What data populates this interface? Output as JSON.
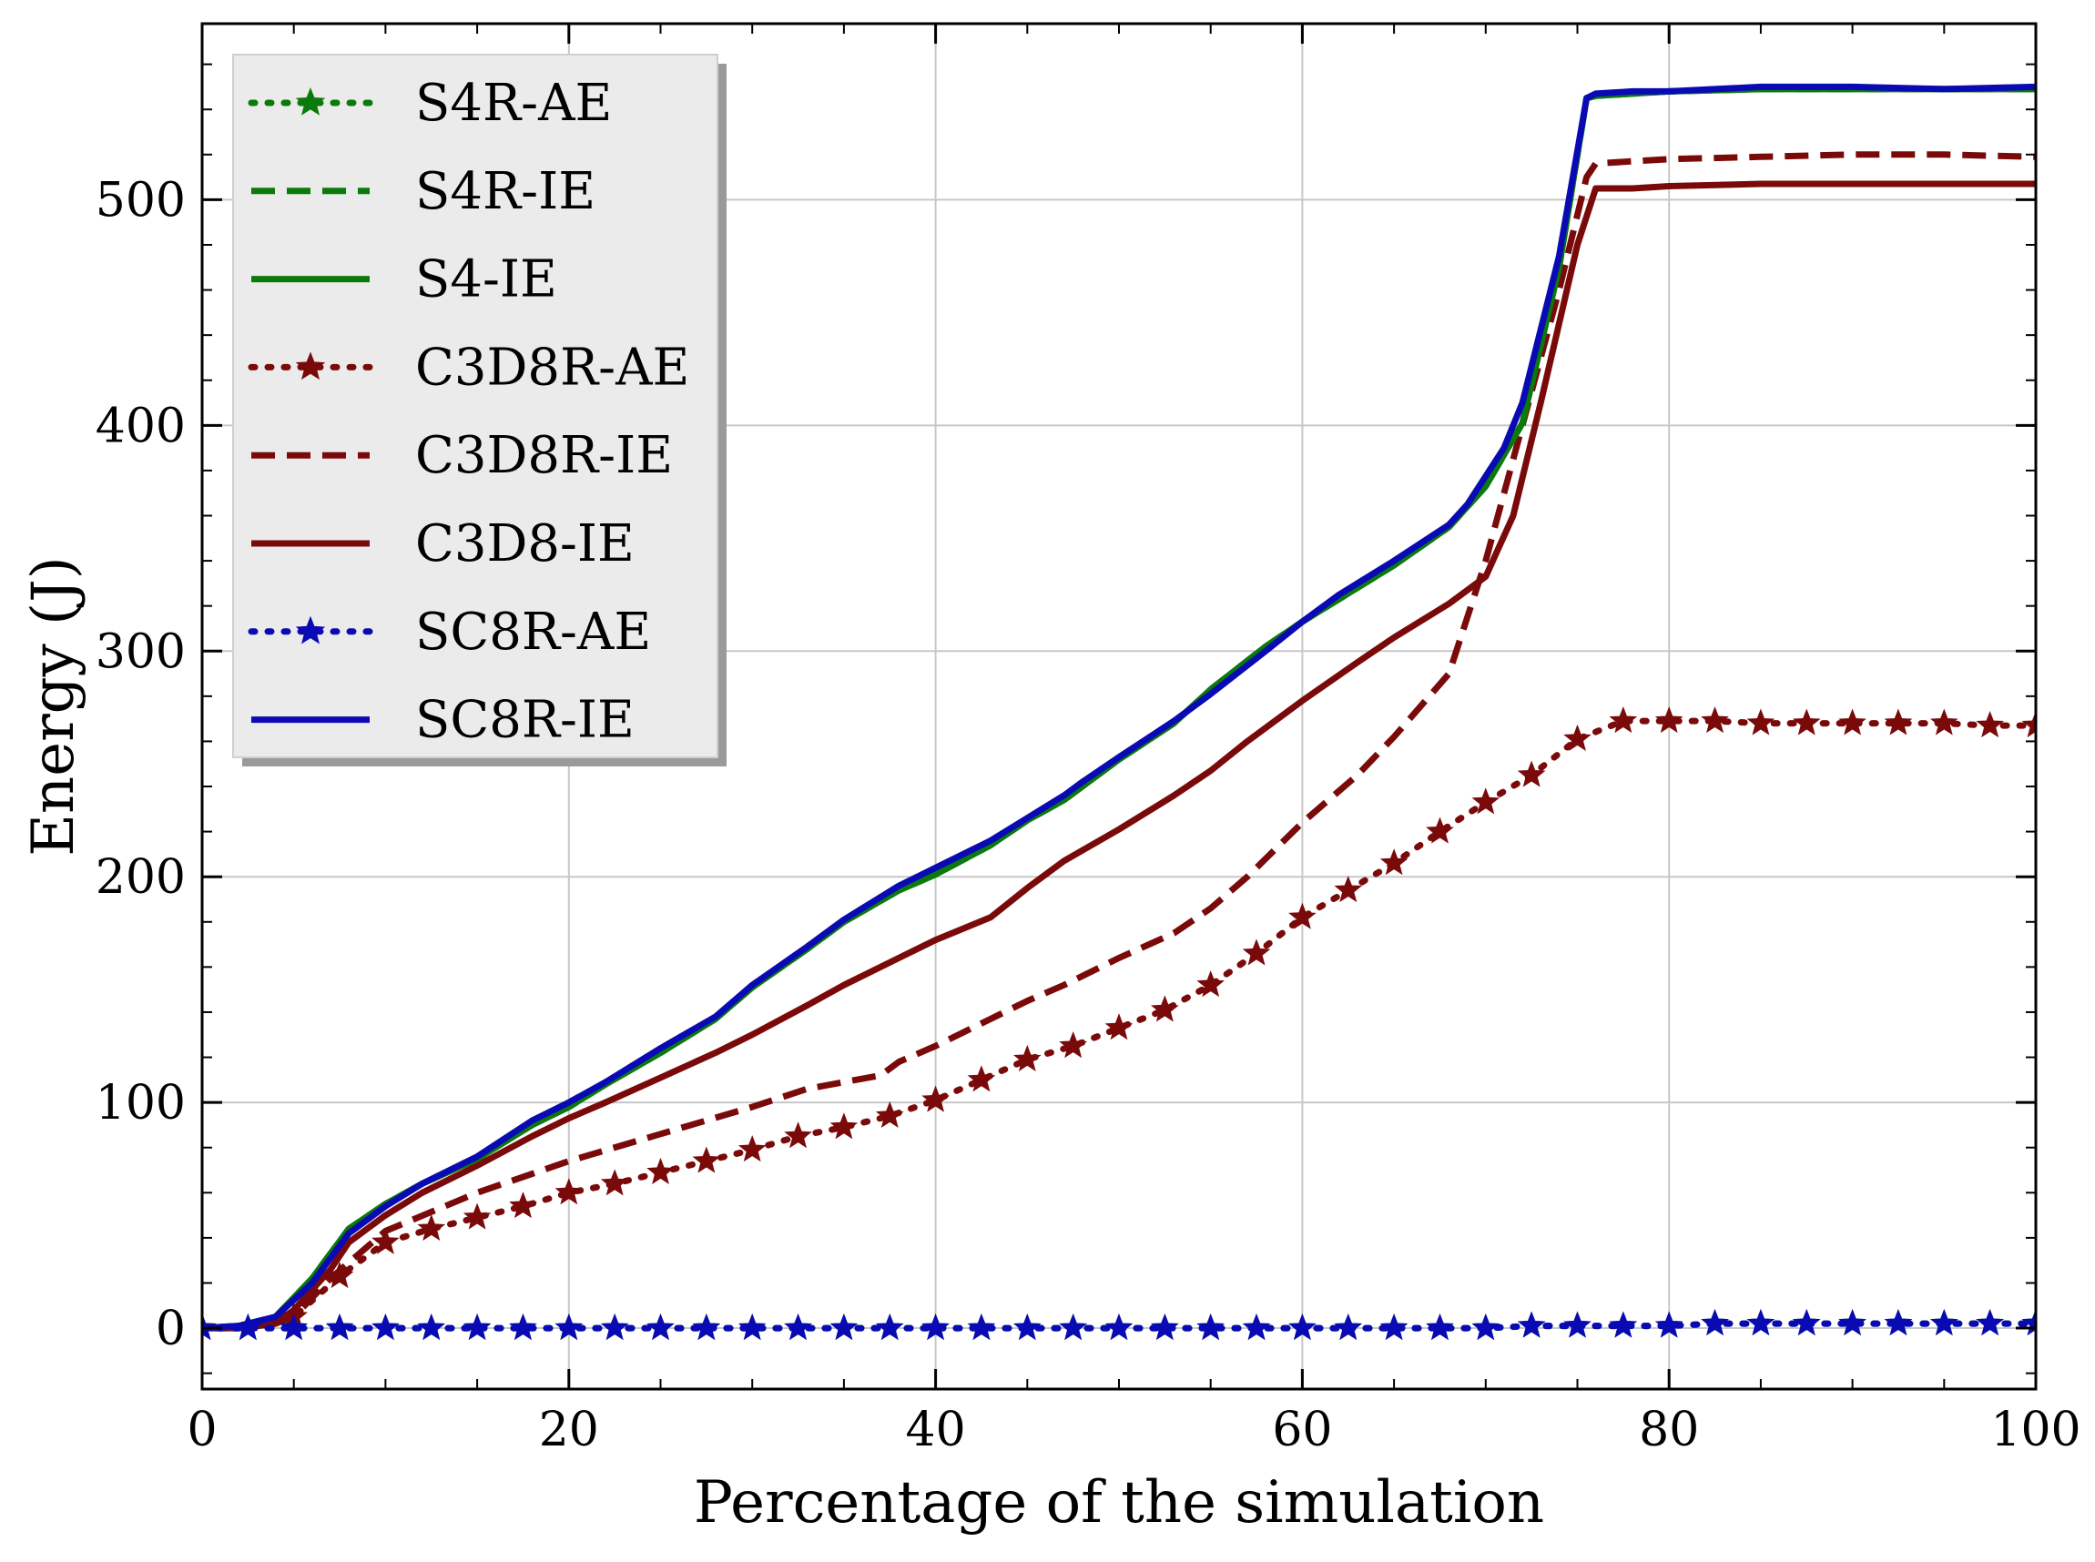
{
  "chart_data": {
    "type": "line",
    "title": "",
    "xlabel": "Percentage of the simulation",
    "ylabel": "Energy (J)",
    "xlim": [
      0,
      100
    ],
    "ylim": [
      -27,
      578
    ],
    "xticks": [
      "0",
      "20",
      "40",
      "60",
      "80",
      "100"
    ],
    "yticks": [
      "0",
      "100",
      "200",
      "300",
      "400",
      "500"
    ],
    "xtick_values": [
      0,
      20,
      40,
      60,
      80,
      100
    ],
    "ytick_values": [
      0,
      100,
      200,
      300,
      400,
      500
    ],
    "grid": true,
    "legend_location": "upper-left",
    "colors": {
      "green": "#0a7a0a",
      "darkred": "#7a0a0a",
      "blue": "#0a0ab5"
    },
    "series": [
      {
        "name": "S4R-AE",
        "color": "#0a7a0a",
        "style": "dotted",
        "marker": "star",
        "x": [
          0,
          2.5,
          5,
          7.5,
          10,
          12.5,
          15,
          17.5,
          20,
          22.5,
          25,
          27.5,
          30,
          32.5,
          35,
          37.5,
          40,
          42.5,
          45,
          47.5,
          50,
          52.5,
          55,
          57.5,
          60,
          62.5,
          65,
          67.5,
          70,
          72.5,
          75,
          77.5,
          80,
          82.5,
          85,
          87.5,
          90,
          92.5,
          95,
          97.5,
          100
        ],
        "y": [
          0,
          0,
          0,
          0,
          0,
          0,
          0,
          0,
          0,
          0,
          0,
          0,
          0,
          0,
          0,
          0,
          0,
          0,
          0,
          0,
          0,
          0,
          0,
          0,
          0,
          0,
          0,
          0,
          0,
          1,
          1,
          1,
          1,
          2,
          2,
          2,
          2,
          2,
          2,
          2,
          2
        ]
      },
      {
        "name": "S4R-IE",
        "color": "#0a7a0a",
        "style": "dashed",
        "x": [
          0,
          2,
          4,
          6,
          8,
          10,
          12,
          15,
          18,
          20,
          22,
          25,
          28,
          30,
          33,
          35,
          38,
          40,
          43,
          45,
          47,
          50,
          53,
          55,
          58,
          60,
          63,
          65,
          68,
          70,
          72,
          74,
          75.5,
          76,
          78,
          80,
          85,
          90,
          95,
          100
        ],
        "y": [
          0,
          1,
          5,
          22,
          44,
          55,
          64,
          75,
          90,
          98,
          108,
          122,
          137,
          151,
          168,
          180,
          194,
          201,
          214,
          225,
          234,
          252,
          268,
          283,
          302,
          313,
          328,
          338,
          355,
          373,
          401,
          470,
          545,
          546,
          547,
          548,
          549,
          549,
          549,
          549
        ]
      },
      {
        "name": "S4-IE",
        "color": "#0a7a0a",
        "style": "solid",
        "x": [
          0,
          2,
          4,
          6,
          8,
          10,
          12,
          15,
          18,
          20,
          22,
          25,
          28,
          30,
          33,
          35,
          38,
          40,
          43,
          45,
          47,
          50,
          53,
          55,
          58,
          60,
          63,
          65,
          68,
          70,
          72,
          74,
          75.5,
          76,
          78,
          80,
          85,
          90,
          95,
          100
        ],
        "y": [
          0,
          1,
          5,
          22,
          44,
          55,
          64,
          75,
          90,
          98,
          108,
          122,
          137,
          151,
          168,
          180,
          194,
          201,
          214,
          225,
          234,
          252,
          268,
          283,
          302,
          313,
          328,
          338,
          355,
          373,
          401,
          470,
          545,
          546,
          547,
          548,
          549,
          549,
          549,
          549
        ]
      },
      {
        "name": "C3D8R-AE",
        "color": "#7a0a0a",
        "style": "dotted",
        "marker": "star",
        "x": [
          0,
          2.5,
          5,
          7.5,
          10,
          12.5,
          15,
          17.5,
          20,
          22.5,
          25,
          27.5,
          30,
          32.5,
          35,
          37.5,
          40,
          42.5,
          45,
          47.5,
          50,
          52.5,
          55,
          57.5,
          60,
          62.5,
          65,
          67.5,
          70,
          72.5,
          75,
          77.5,
          80,
          82.5,
          85,
          87.5,
          90,
          92.5,
          95,
          97.5,
          100
        ],
        "y": [
          0,
          0,
          5,
          23,
          38,
          44,
          49,
          54,
          60,
          64,
          69,
          74,
          79,
          85,
          89,
          94,
          101,
          110,
          119,
          125,
          133,
          141,
          152,
          166,
          182,
          194,
          206,
          220,
          233,
          245,
          261,
          269,
          269,
          269,
          268,
          268,
          268,
          268,
          268,
          267,
          267
        ]
      },
      {
        "name": "C3D8R-IE",
        "color": "#7a0a0a",
        "style": "dashed",
        "x": [
          0,
          2,
          4,
          5,
          7,
          10,
          15,
          20,
          25,
          30,
          33,
          37,
          38,
          40,
          42,
          45,
          47,
          50,
          53,
          55,
          57,
          60,
          63,
          65,
          68,
          70,
          72,
          74,
          75.5,
          76,
          78,
          80,
          85,
          90,
          95,
          100
        ],
        "y": [
          0,
          0,
          2,
          5,
          22,
          43,
          60,
          74,
          86,
          98,
          106,
          112,
          118,
          125,
          133,
          145,
          152,
          164,
          175,
          186,
          200,
          224,
          245,
          262,
          290,
          340,
          400,
          460,
          510,
          516,
          517,
          518,
          519,
          520,
          520,
          519
        ]
      },
      {
        "name": "C3D8-IE",
        "color": "#7a0a0a",
        "style": "solid",
        "x": [
          0,
          2,
          4,
          5,
          7,
          8,
          10,
          12,
          15,
          18,
          20,
          22,
          25,
          28,
          30,
          33,
          35,
          38,
          40,
          43,
          45,
          47,
          50,
          53,
          55,
          57,
          60,
          63,
          65,
          68,
          70,
          71.5,
          73,
          75,
          76,
          78,
          80,
          85,
          90,
          95,
          100
        ],
        "y": [
          0,
          0,
          2,
          8,
          26,
          38,
          50,
          60,
          72,
          85,
          93,
          100,
          111,
          122,
          130,
          143,
          152,
          164,
          172,
          182,
          195,
          207,
          221,
          236,
          247,
          260,
          278,
          295,
          306,
          321,
          333,
          360,
          410,
          480,
          505,
          505,
          506,
          507,
          507,
          507,
          507
        ]
      },
      {
        "name": "SC8R-AE",
        "color": "#0a0ab5",
        "style": "dotted",
        "marker": "star",
        "x": [
          0,
          2.5,
          5,
          7.5,
          10,
          12.5,
          15,
          17.5,
          20,
          22.5,
          25,
          27.5,
          30,
          32.5,
          35,
          37.5,
          40,
          42.5,
          45,
          47.5,
          50,
          52.5,
          55,
          57.5,
          60,
          62.5,
          65,
          67.5,
          70,
          72.5,
          75,
          77.5,
          80,
          82.5,
          85,
          87.5,
          90,
          92.5,
          95,
          97.5,
          100
        ],
        "y": [
          0,
          0,
          0,
          0,
          0,
          0,
          0,
          0,
          0,
          0,
          0,
          0,
          0,
          0,
          0,
          0,
          0,
          0,
          0,
          0,
          0,
          0,
          0,
          0,
          0,
          0,
          0,
          0,
          0,
          1,
          1,
          1,
          1,
          2,
          2,
          2,
          2,
          2,
          2,
          2,
          2
        ]
      },
      {
        "name": "SC8R-IE",
        "color": "#0a0ab5",
        "style": "solid",
        "x": [
          0,
          2,
          4,
          6,
          8,
          10,
          12,
          15,
          18,
          20,
          22,
          25,
          28,
          30,
          33,
          35,
          38,
          40,
          43,
          45,
          47,
          48,
          50,
          53,
          55,
          58,
          60,
          62,
          65,
          68,
          69,
          71,
          72,
          74,
          75.5,
          76,
          78,
          80,
          85,
          90,
          95,
          100
        ],
        "y": [
          0,
          1,
          5,
          20,
          42,
          54,
          64,
          76,
          92,
          100,
          109,
          124,
          138,
          152,
          169,
          181,
          196,
          204,
          216,
          226,
          236,
          242,
          253,
          269,
          281,
          300,
          313,
          325,
          340,
          356,
          365,
          390,
          410,
          475,
          545,
          547,
          548,
          548,
          550,
          550,
          549,
          550
        ]
      }
    ]
  }
}
